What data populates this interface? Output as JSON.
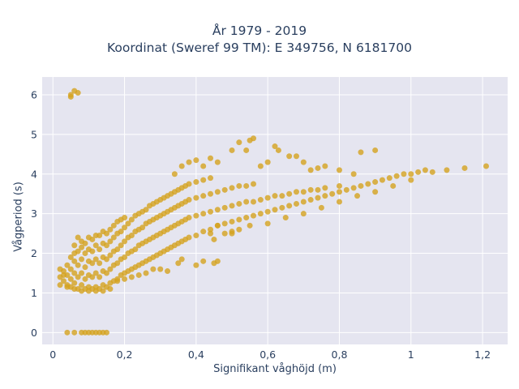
{
  "colors": {
    "plot_bg": "#e5e5f0",
    "grid": "#ffffff",
    "points": "#d4a21f",
    "text": "#2a3f5f"
  },
  "chart_data": {
    "type": "scatter",
    "title": "År 1979 - 2019",
    "subtitle": "Koordinat (Sweref 99 TM): E 349756, N 6181700",
    "xlabel": "Signifikant våghöjd (m)",
    "ylabel": "Vågperiod (s)",
    "xlim": [
      -0.03,
      1.27
    ],
    "ylim": [
      -0.3,
      6.45
    ],
    "grid": true,
    "x_ticks": [
      0,
      0.2,
      0.4,
      0.6,
      0.8,
      1,
      1.2
    ],
    "x_tick_labels": [
      "0",
      "0,2",
      "0,4",
      "0,6",
      "0,8",
      "1",
      "1,2"
    ],
    "y_ticks": [
      0,
      1,
      2,
      3,
      4,
      5,
      6
    ],
    "y_tick_labels": [
      "0",
      "1",
      "2",
      "3",
      "4",
      "5",
      "6"
    ],
    "series": [
      {
        "points": [
          [
            0.05,
            6.0
          ],
          [
            0.06,
            6.1
          ],
          [
            0.07,
            6.05
          ],
          [
            0.05,
            5.95
          ],
          [
            0.04,
            0.0
          ],
          [
            0.06,
            0.0
          ],
          [
            0.08,
            0.0
          ],
          [
            0.09,
            0.0
          ],
          [
            0.1,
            0.0
          ],
          [
            0.11,
            0.0
          ],
          [
            0.12,
            0.0
          ],
          [
            0.13,
            0.0
          ],
          [
            0.14,
            0.0
          ],
          [
            0.15,
            0.0
          ],
          [
            0.02,
            1.2
          ],
          [
            0.02,
            1.4
          ],
          [
            0.02,
            1.6
          ],
          [
            0.03,
            1.3
          ],
          [
            0.03,
            1.55
          ],
          [
            0.04,
            1.2
          ],
          [
            0.04,
            1.45
          ],
          [
            0.04,
            1.7
          ],
          [
            0.05,
            1.15
          ],
          [
            0.05,
            1.35
          ],
          [
            0.05,
            1.6
          ],
          [
            0.05,
            1.9
          ],
          [
            0.06,
            1.25
          ],
          [
            0.06,
            1.5
          ],
          [
            0.06,
            1.8
          ],
          [
            0.06,
            2.0
          ],
          [
            0.07,
            1.1
          ],
          [
            0.07,
            1.4
          ],
          [
            0.07,
            1.7
          ],
          [
            0.07,
            2.05
          ],
          [
            0.08,
            1.2
          ],
          [
            0.08,
            1.5
          ],
          [
            0.08,
            1.85
          ],
          [
            0.08,
            2.15
          ],
          [
            0.09,
            1.1
          ],
          [
            0.09,
            1.35
          ],
          [
            0.09,
            1.65
          ],
          [
            0.09,
            2.0
          ],
          [
            0.09,
            2.25
          ],
          [
            0.1,
            1.15
          ],
          [
            0.1,
            1.45
          ],
          [
            0.1,
            1.8
          ],
          [
            0.1,
            2.1
          ],
          [
            0.1,
            2.4
          ],
          [
            0.11,
            1.1
          ],
          [
            0.11,
            1.4
          ],
          [
            0.11,
            1.75
          ],
          [
            0.11,
            2.05
          ],
          [
            0.11,
            2.35
          ],
          [
            0.12,
            1.15
          ],
          [
            0.12,
            1.5
          ],
          [
            0.12,
            1.85
          ],
          [
            0.12,
            2.2
          ],
          [
            0.12,
            2.45
          ],
          [
            0.13,
            1.1
          ],
          [
            0.13,
            1.4
          ],
          [
            0.13,
            1.75
          ],
          [
            0.13,
            2.1
          ],
          [
            0.13,
            2.45
          ],
          [
            0.14,
            1.2
          ],
          [
            0.14,
            1.55
          ],
          [
            0.14,
            1.9
          ],
          [
            0.14,
            2.25
          ],
          [
            0.14,
            2.55
          ],
          [
            0.15,
            1.15
          ],
          [
            0.15,
            1.5
          ],
          [
            0.15,
            1.85
          ],
          [
            0.15,
            2.2
          ],
          [
            0.15,
            2.5
          ],
          [
            0.16,
            1.25
          ],
          [
            0.16,
            1.6
          ],
          [
            0.16,
            1.95
          ],
          [
            0.16,
            2.3
          ],
          [
            0.16,
            2.6
          ],
          [
            0.17,
            1.3
          ],
          [
            0.17,
            1.7
          ],
          [
            0.17,
            2.05
          ],
          [
            0.17,
            2.4
          ],
          [
            0.17,
            2.7
          ],
          [
            0.18,
            1.35
          ],
          [
            0.18,
            1.75
          ],
          [
            0.18,
            2.1
          ],
          [
            0.18,
            2.5
          ],
          [
            0.18,
            2.8
          ],
          [
            0.19,
            1.45
          ],
          [
            0.19,
            1.85
          ],
          [
            0.19,
            2.2
          ],
          [
            0.19,
            2.55
          ],
          [
            0.19,
            2.85
          ],
          [
            0.2,
            1.5
          ],
          [
            0.2,
            1.9
          ],
          [
            0.2,
            2.3
          ],
          [
            0.2,
            2.65
          ],
          [
            0.2,
            2.9
          ],
          [
            0.21,
            1.55
          ],
          [
            0.21,
            2.0
          ],
          [
            0.21,
            2.4
          ],
          [
            0.21,
            2.75
          ],
          [
            0.22,
            1.6
          ],
          [
            0.22,
            2.05
          ],
          [
            0.22,
            2.45
          ],
          [
            0.22,
            2.85
          ],
          [
            0.23,
            1.65
          ],
          [
            0.23,
            2.1
          ],
          [
            0.23,
            2.55
          ],
          [
            0.23,
            2.95
          ],
          [
            0.24,
            1.7
          ],
          [
            0.24,
            2.2
          ],
          [
            0.24,
            2.6
          ],
          [
            0.24,
            3.0
          ],
          [
            0.25,
            1.75
          ],
          [
            0.25,
            2.25
          ],
          [
            0.25,
            2.65
          ],
          [
            0.25,
            3.05
          ],
          [
            0.26,
            1.8
          ],
          [
            0.26,
            2.3
          ],
          [
            0.26,
            2.75
          ],
          [
            0.26,
            3.1
          ],
          [
            0.27,
            1.85
          ],
          [
            0.27,
            2.35
          ],
          [
            0.27,
            2.8
          ],
          [
            0.27,
            3.2
          ],
          [
            0.28,
            1.9
          ],
          [
            0.28,
            2.4
          ],
          [
            0.28,
            2.85
          ],
          [
            0.28,
            3.25
          ],
          [
            0.29,
            1.95
          ],
          [
            0.29,
            2.45
          ],
          [
            0.29,
            2.9
          ],
          [
            0.29,
            3.3
          ],
          [
            0.3,
            2.0
          ],
          [
            0.3,
            2.5
          ],
          [
            0.3,
            2.95
          ],
          [
            0.3,
            3.35
          ],
          [
            0.31,
            2.05
          ],
          [
            0.31,
            2.55
          ],
          [
            0.31,
            3.0
          ],
          [
            0.31,
            3.4
          ],
          [
            0.32,
            2.1
          ],
          [
            0.32,
            2.6
          ],
          [
            0.32,
            3.05
          ],
          [
            0.32,
            3.45
          ],
          [
            0.33,
            2.15
          ],
          [
            0.33,
            2.65
          ],
          [
            0.33,
            3.1
          ],
          [
            0.33,
            3.5
          ],
          [
            0.34,
            2.2
          ],
          [
            0.34,
            2.7
          ],
          [
            0.34,
            3.15
          ],
          [
            0.34,
            3.55
          ],
          [
            0.35,
            2.25
          ],
          [
            0.35,
            2.75
          ],
          [
            0.35,
            3.2
          ],
          [
            0.35,
            3.6
          ],
          [
            0.36,
            2.3
          ],
          [
            0.36,
            2.8
          ],
          [
            0.36,
            3.25
          ],
          [
            0.36,
            3.65
          ],
          [
            0.37,
            2.35
          ],
          [
            0.37,
            2.85
          ],
          [
            0.37,
            3.3
          ],
          [
            0.37,
            3.7
          ],
          [
            0.38,
            2.4
          ],
          [
            0.38,
            2.9
          ],
          [
            0.38,
            3.35
          ],
          [
            0.38,
            3.75
          ],
          [
            0.4,
            2.45
          ],
          [
            0.4,
            2.95
          ],
          [
            0.4,
            3.4
          ],
          [
            0.4,
            3.8
          ],
          [
            0.42,
            2.55
          ],
          [
            0.42,
            3.0
          ],
          [
            0.42,
            3.45
          ],
          [
            0.42,
            3.85
          ],
          [
            0.44,
            2.6
          ],
          [
            0.44,
            3.05
          ],
          [
            0.44,
            3.5
          ],
          [
            0.44,
            3.9
          ],
          [
            0.46,
            2.7
          ],
          [
            0.46,
            3.1
          ],
          [
            0.46,
            3.55
          ],
          [
            0.48,
            2.75
          ],
          [
            0.48,
            3.15
          ],
          [
            0.48,
            3.6
          ],
          [
            0.5,
            2.8
          ],
          [
            0.5,
            3.2
          ],
          [
            0.5,
            3.65
          ],
          [
            0.52,
            2.85
          ],
          [
            0.52,
            3.25
          ],
          [
            0.52,
            3.7
          ],
          [
            0.54,
            2.9
          ],
          [
            0.54,
            3.3
          ],
          [
            0.54,
            3.7
          ],
          [
            0.56,
            2.95
          ],
          [
            0.56,
            3.3
          ],
          [
            0.56,
            3.75
          ],
          [
            0.58,
            3.0
          ],
          [
            0.58,
            3.35
          ],
          [
            0.6,
            3.05
          ],
          [
            0.6,
            3.4
          ],
          [
            0.62,
            3.1
          ],
          [
            0.62,
            3.45
          ],
          [
            0.64,
            3.15
          ],
          [
            0.64,
            3.45
          ],
          [
            0.66,
            3.2
          ],
          [
            0.66,
            3.5
          ],
          [
            0.68,
            3.25
          ],
          [
            0.68,
            3.55
          ],
          [
            0.7,
            3.3
          ],
          [
            0.7,
            3.55
          ],
          [
            0.72,
            3.35
          ],
          [
            0.72,
            3.6
          ],
          [
            0.74,
            3.4
          ],
          [
            0.74,
            3.6
          ],
          [
            0.76,
            3.45
          ],
          [
            0.76,
            3.65
          ],
          [
            0.78,
            3.5
          ],
          [
            0.8,
            3.55
          ],
          [
            0.8,
            3.7
          ],
          [
            0.82,
            3.6
          ],
          [
            0.84,
            3.65
          ],
          [
            0.86,
            3.7
          ],
          [
            0.88,
            3.75
          ],
          [
            0.9,
            3.8
          ],
          [
            0.92,
            3.85
          ],
          [
            0.94,
            3.9
          ],
          [
            0.96,
            3.95
          ],
          [
            0.98,
            4.0
          ],
          [
            1.0,
            4.0
          ],
          [
            1.02,
            4.05
          ],
          [
            1.04,
            4.1
          ],
          [
            1.06,
            4.05
          ],
          [
            1.1,
            4.1
          ],
          [
            1.15,
            4.15
          ],
          [
            1.21,
            4.2
          ],
          [
            0.34,
            4.0
          ],
          [
            0.36,
            4.2
          ],
          [
            0.38,
            4.3
          ],
          [
            0.4,
            4.35
          ],
          [
            0.42,
            4.2
          ],
          [
            0.44,
            4.4
          ],
          [
            0.46,
            4.3
          ],
          [
            0.5,
            4.6
          ],
          [
            0.52,
            4.8
          ],
          [
            0.54,
            4.6
          ],
          [
            0.55,
            4.85
          ],
          [
            0.56,
            4.9
          ],
          [
            0.58,
            4.2
          ],
          [
            0.6,
            4.3
          ],
          [
            0.62,
            4.7
          ],
          [
            0.63,
            4.6
          ],
          [
            0.66,
            4.45
          ],
          [
            0.68,
            4.45
          ],
          [
            0.7,
            4.3
          ],
          [
            0.72,
            4.1
          ],
          [
            0.74,
            4.15
          ],
          [
            0.76,
            4.2
          ],
          [
            0.8,
            4.1
          ],
          [
            0.84,
            4.0
          ],
          [
            0.86,
            4.55
          ],
          [
            0.9,
            4.6
          ],
          [
            0.35,
            1.75
          ],
          [
            0.36,
            1.85
          ],
          [
            0.4,
            1.7
          ],
          [
            0.42,
            1.8
          ],
          [
            0.45,
            1.75
          ],
          [
            0.46,
            1.8
          ],
          [
            0.3,
            1.6
          ],
          [
            0.32,
            1.55
          ],
          [
            0.28,
            1.6
          ],
          [
            0.26,
            1.5
          ],
          [
            0.24,
            1.45
          ],
          [
            0.22,
            1.4
          ],
          [
            0.2,
            1.35
          ],
          [
            0.18,
            1.3
          ],
          [
            0.16,
            1.1
          ],
          [
            0.14,
            1.05
          ],
          [
            0.12,
            1.05
          ],
          [
            0.1,
            1.05
          ],
          [
            0.08,
            1.05
          ],
          [
            0.06,
            1.1
          ],
          [
            0.04,
            1.15
          ],
          [
            0.03,
            1.45
          ],
          [
            0.45,
            2.35
          ],
          [
            0.5,
            2.5
          ],
          [
            0.55,
            2.7
          ],
          [
            0.6,
            2.75
          ],
          [
            0.65,
            2.9
          ],
          [
            0.7,
            3.0
          ],
          [
            0.75,
            3.15
          ],
          [
            0.8,
            3.3
          ],
          [
            0.85,
            3.45
          ],
          [
            0.9,
            3.55
          ],
          [
            0.95,
            3.7
          ],
          [
            1.0,
            3.85
          ],
          [
            0.5,
            2.55
          ],
          [
            0.52,
            2.6
          ],
          [
            0.48,
            2.5
          ],
          [
            0.46,
            2.7
          ],
          [
            0.44,
            2.5
          ],
          [
            0.06,
            2.2
          ],
          [
            0.08,
            2.3
          ],
          [
            0.07,
            2.4
          ]
        ]
      }
    ]
  }
}
